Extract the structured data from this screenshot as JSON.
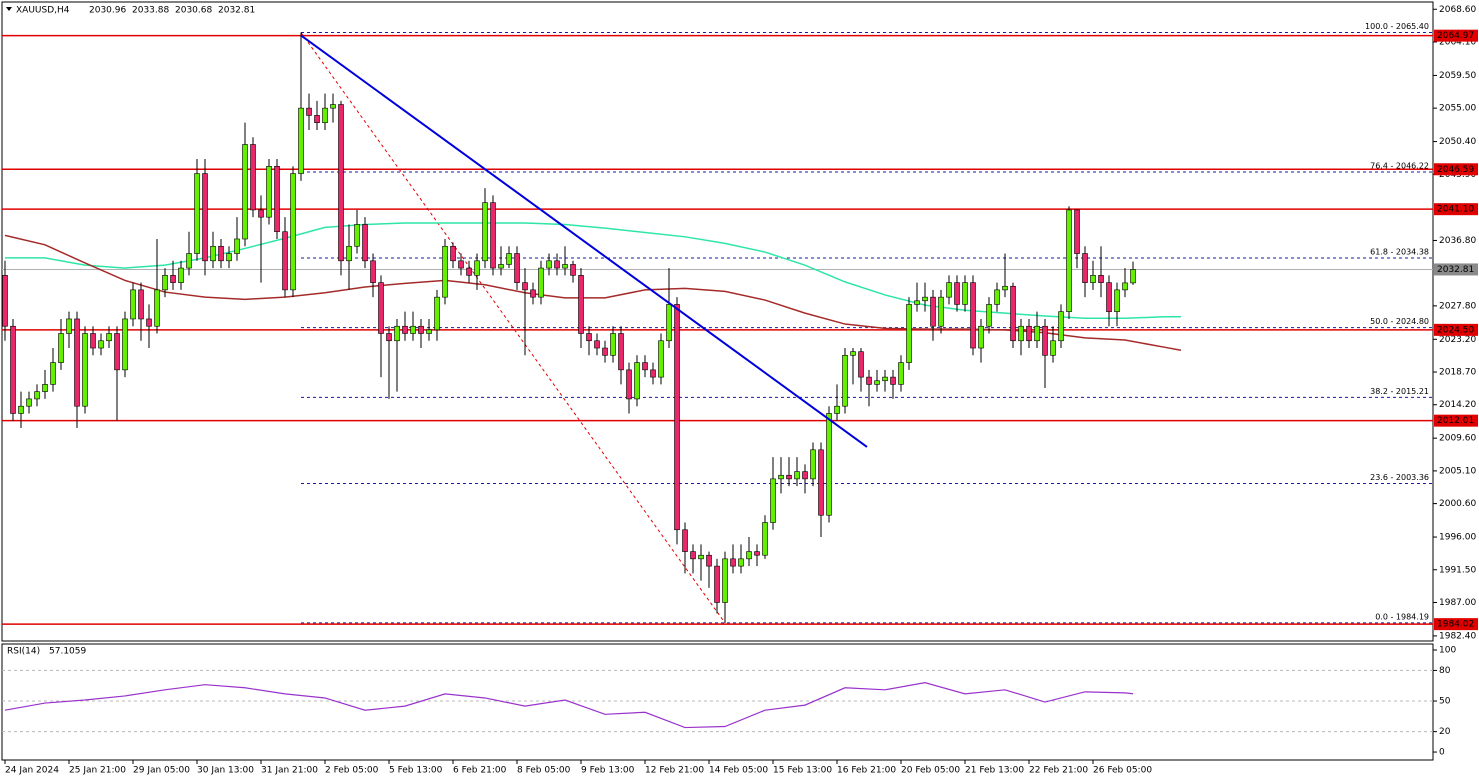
{
  "chart_data": {
    "type": "candlestick",
    "symbol": "XAUUSD,H4",
    "categories": [
      "24 Jan 2024",
      null,
      null,
      null,
      null,
      null,
      null,
      null,
      "25 Jan 21:00",
      null,
      null,
      null,
      null,
      null,
      null,
      null,
      "29 Jan 05:00",
      null,
      null,
      null,
      null,
      null,
      null,
      null,
      "30 Jan 13:00",
      null,
      null,
      null,
      null,
      null,
      null,
      null,
      "31 Jan 21:00",
      null,
      null,
      null,
      null,
      null,
      null,
      null,
      "2 Feb 05:00",
      null,
      null,
      null,
      null,
      null,
      null,
      null,
      "5 Feb 13:00",
      null,
      null,
      null,
      null,
      null,
      null,
      null,
      "6 Feb 21:00",
      null,
      null,
      null,
      null,
      null,
      null,
      null,
      "8 Feb 05:00",
      null,
      null,
      null,
      null,
      null,
      null,
      null,
      "9 Feb 13:00",
      null,
      null,
      null,
      null,
      null,
      null,
      null,
      "12 Feb 21:00",
      null,
      null,
      null,
      null,
      null,
      null,
      null,
      "14 Feb 05:00",
      null,
      null,
      null,
      null,
      null,
      null,
      null,
      "15 Feb 13:00",
      null,
      null,
      null,
      null,
      null,
      null,
      null,
      "16 Feb 21:00",
      null,
      null,
      null,
      null,
      null,
      null,
      null,
      "20 Feb 05:00",
      null,
      null,
      null,
      null,
      null,
      null,
      null,
      "21 Feb 13:00",
      null,
      null,
      null,
      null,
      null,
      null,
      null,
      "22 Feb 21:00",
      null,
      null,
      null,
      null,
      null,
      null,
      null,
      "26 Feb 05:00",
      null,
      null,
      null,
      null,
      null
    ],
    "open": [
      2032,
      2025,
      2013,
      2014,
      2015,
      2016,
      2017,
      2020,
      2024,
      2026,
      2014,
      2024,
      2022,
      2023,
      2024,
      2019,
      2026,
      2030,
      2026,
      2025,
      2030,
      2032,
      2031,
      2033,
      2035,
      2046,
      2034,
      2036,
      2034,
      2035,
      2037,
      2050,
      2041,
      2040,
      2047,
      2038,
      2030,
      2046,
      2055,
      2054,
      2053,
      2055,
      2055.5,
      2034,
      2036,
      2039,
      2034,
      2031,
      2024,
      2023,
      2025,
      2024,
      2025,
      2024,
      2024.5,
      2029,
      2036,
      2034,
      2033,
      2032,
      2034,
      2042,
      2033,
      2033.5,
      2035,
      2031,
      2030,
      2029,
      2033,
      2034,
      2033,
      2033.5,
      2032,
      2024,
      2023,
      2022,
      2021,
      2024,
      2019,
      2015,
      2020,
      2019,
      2018,
      2023,
      2028,
      1997,
      1994,
      1993,
      1993.5,
      1992,
      1987,
      1993,
      1992,
      1993,
      1994,
      1993.5,
      1998,
      2004,
      2004.5,
      2004,
      2005,
      2004,
      2008,
      1999,
      2013,
      2014,
      2021,
      2021.5,
      2018,
      2017,
      2017.5,
      2018,
      2017,
      2020,
      2028,
      2028.5,
      2029,
      2025,
      2029,
      2031,
      2028,
      2031,
      2022,
      2025,
      2028,
      2030,
      2030.5,
      2023,
      2025,
      2023,
      2025,
      2021,
      2023,
      2027,
      2041,
      2035,
      2031,
      2032,
      2031,
      2027,
      2030,
      2030.96
    ],
    "high": [
      2034,
      2026,
      2016,
      2016,
      2017,
      2019,
      2022,
      2026,
      2027,
      2027,
      2025,
      2025,
      2024,
      2025,
      2025,
      2027,
      2031,
      2031,
      2028,
      2037,
      2033,
      2034,
      2034,
      2038,
      2048,
      2048,
      2038,
      2037,
      2036,
      2040,
      2053,
      2051,
      2043,
      2048,
      2048,
      2040,
      2047,
      2065.4,
      2057,
      2056,
      2057,
      2057,
      2056,
      2039,
      2041,
      2040,
      2035,
      2032,
      2025,
      2026,
      2027,
      2027,
      2026,
      2026,
      2030,
      2037,
      2036.5,
      2035,
      2034,
      2035,
      2044,
      2043,
      2036,
      2036,
      2036,
      2033,
      2031,
      2034,
      2035,
      2035,
      2036,
      2034,
      2033,
      2025,
      2024,
      2023,
      2025,
      2025,
      2020,
      2021,
      2021,
      2020,
      2024,
      2033,
      2029,
      1998,
      1995,
      1995,
      1994,
      1993,
      1994,
      1995,
      1995,
      1996,
      1995,
      1999,
      2007,
      2007,
      2007,
      2007,
      2006,
      2009,
      2009,
      2014,
      2017,
      2022,
      2022,
      2022,
      2019,
      2019,
      2019,
      2019,
      2021,
      2029,
      2031,
      2031,
      2030,
      2030,
      2032,
      2032,
      2032,
      2032,
      2026,
      2029,
      2031,
      2035,
      2031,
      2026,
      2026,
      2027,
      2026,
      2025,
      2028,
      2041.5,
      2041,
      2036,
      2034,
      2036,
      2032,
      2031,
      2033,
      2033.88
    ],
    "low": [
      2023,
      2012,
      2011,
      2013,
      2014,
      2015,
      2016,
      2019,
      2022,
      2011,
      2013,
      2021,
      2021,
      2022,
      2012,
      2018,
      2025,
      2023,
      2022,
      2024,
      2029,
      2030,
      2030,
      2032,
      2034,
      2032,
      2033,
      2033,
      2033,
      2034,
      2036,
      2040,
      2031,
      2039,
      2037,
      2029,
      2029,
      2045,
      2052,
      2052,
      2052,
      2053,
      2032,
      2030,
      2035,
      2033,
      2029,
      2018,
      2015,
      2016,
      2023,
      2023,
      2022,
      2023,
      2023,
      2028,
      2033,
      2032,
      2031,
      2030,
      2033,
      2032,
      2032,
      2033,
      2030,
      2021,
      2028,
      2028,
      2032,
      2032,
      2032,
      2031,
      2022,
      2021,
      2021,
      2020,
      2020,
      2017,
      2013,
      2014,
      2018,
      2017,
      2017,
      2022,
      1995,
      1991,
      1991,
      1990,
      1989,
      1985.5,
      1984.2,
      1991,
      1991,
      1992,
      1992,
      1993,
      1997,
      2002,
      2003,
      2003,
      2002,
      2003,
      1996,
      1998,
      2012,
      2013,
      2017,
      2016,
      2014,
      2016,
      2016,
      2015,
      2016,
      2019,
      2027,
      2027,
      2023,
      2024,
      2028,
      2027,
      2027,
      2021,
      2020,
      2024,
      2027,
      2029,
      2022,
      2021,
      2022,
      2022,
      2016.5,
      2020,
      2022,
      2026,
      2033,
      2029,
      2030,
      2029,
      2025,
      2025,
      2029,
      2030.68
    ],
    "close": [
      2025,
      2013,
      2014,
      2015,
      2016,
      2017,
      2020,
      2024,
      2026,
      2014,
      2024,
      2022,
      2023,
      2024,
      2019,
      2026,
      2030,
      2026,
      2025,
      2030,
      2032,
      2031,
      2033,
      2035,
      2046,
      2034,
      2036,
      2034,
      2035,
      2037,
      2050,
      2041,
      2040,
      2047,
      2038,
      2030,
      2046,
      2055,
      2054,
      2053,
      2055,
      2055.5,
      2034,
      2036,
      2039,
      2034,
      2031,
      2024,
      2023,
      2025,
      2024,
      2025,
      2024,
      2024.5,
      2029,
      2036,
      2034,
      2033,
      2032,
      2034,
      2042,
      2033,
      2033.5,
      2035,
      2031,
      2030,
      2029,
      2033,
      2034,
      2033,
      2033.5,
      2032,
      2024,
      2023,
      2022,
      2021,
      2024,
      2019,
      2015,
      2020,
      2019,
      2018,
      2023,
      2028,
      1997,
      1994,
      1993,
      1993.5,
      1992,
      1987,
      1993,
      1992,
      1993,
      1994,
      1993.5,
      1998,
      2004,
      2004.5,
      2004,
      2005,
      2004,
      2008,
      1999,
      2013,
      2014,
      2021,
      2021.5,
      2018,
      2017,
      2017.5,
      2018,
      2017,
      2020,
      2028,
      2028.5,
      2029,
      2025,
      2029,
      2031,
      2028,
      2031,
      2022,
      2025,
      2028,
      2030,
      2030.5,
      2023,
      2025,
      2023,
      2025,
      2021,
      2023,
      2027,
      2041,
      2035,
      2031,
      2032,
      2031,
      2027,
      2030,
      2030.96,
      2032.81
    ],
    "up_color": "#66ee00",
    "down_color": "#e8286a",
    "ylim": [
      1981.7,
      2069.6
    ],
    "yticks": [
      {
        "value": 2068.6,
        "label": "2068.60"
      },
      {
        "value": 2064.1,
        "label": "2064.10"
      },
      {
        "value": 2059.5,
        "label": "2059.50"
      },
      {
        "value": 2055,
        "label": "2055.00"
      },
      {
        "value": 2050.4,
        "label": "2050.40"
      },
      {
        "value": 2045.9,
        "label": "2045.90"
      },
      {
        "value": 2036.8,
        "label": "2036.80"
      },
      {
        "value": 2027.8,
        "label": "2027.80"
      },
      {
        "value": 2023.2,
        "label": "2023.20"
      },
      {
        "value": 2018.7,
        "label": "2018.70"
      },
      {
        "value": 2014.2,
        "label": "2014.20"
      },
      {
        "value": 2009.6,
        "label": "2009.60"
      },
      {
        "value": 2005.1,
        "label": "2005.10"
      },
      {
        "value": 2000.6,
        "label": "2000.60"
      },
      {
        "value": 1996,
        "label": "1996.00"
      },
      {
        "value": 1991.5,
        "label": "1991.50"
      },
      {
        "value": 1987,
        "label": "1987.00"
      },
      {
        "value": 1982.4,
        "label": "1982.40"
      }
    ],
    "series": [
      {
        "color": "#2ee6a6",
        "x": [
          0,
          5,
          10,
          15,
          20,
          25,
          30,
          35,
          40,
          45,
          50,
          55,
          60,
          65,
          70,
          75,
          80,
          85,
          90,
          95,
          100,
          105,
          110,
          115,
          120,
          125,
          130,
          135,
          140,
          145,
          147
        ],
        "values": [
          2034.4,
          2034.4,
          2033.4,
          2033,
          2033.4,
          2034.4,
          2035.7,
          2037.1,
          2038.6,
          2039,
          2039.2,
          2039.2,
          2039.2,
          2039.2,
          2039,
          2038.5,
          2037.9,
          2037.3,
          2036.4,
          2035.2,
          2033.4,
          2031.1,
          2029.3,
          2027.9,
          2027.2,
          2026.8,
          2026.4,
          2026.1,
          2026.1,
          2026.3,
          2026.3
        ]
      },
      {
        "color": "#a52a2a",
        "x": [
          0,
          5,
          10,
          15,
          20,
          25,
          30,
          35,
          40,
          45,
          50,
          55,
          60,
          65,
          70,
          75,
          80,
          85,
          90,
          95,
          100,
          105,
          110,
          115,
          120,
          125,
          130,
          135,
          140,
          145,
          147
        ],
        "values": [
          2037.5,
          2036.2,
          2033.7,
          2031.3,
          2029.7,
          2029,
          2028.7,
          2029,
          2029.6,
          2030.4,
          2030.9,
          2031.3,
          2030.7,
          2029.6,
          2028.9,
          2028.9,
          2030,
          2030.2,
          2029.8,
          2028.6,
          2026.8,
          2025.3,
          2024.7,
          2024.6,
          2024.6,
          2024.5,
          2024.1,
          2023.4,
          2023.1,
          2022.1,
          2021.7
        ]
      }
    ],
    "levels": {
      "color": "#e00000",
      "values": [
        2064.97,
        2046.59,
        {
          "value": 2041.1,
          "label": "2041.10"
        },
        {
          "value": 2024.5,
          "label": "2024.50"
        },
        2012.01,
        1984.02
      ]
    },
    "fib": {
      "color": "#1a1aa0",
      "label_color": "#0000ee",
      "line_color": "#e00000",
      "x": [
        37,
        90
      ],
      "levels": [
        {
          "value": 2065.4,
          "label": "100.0 - 2065.40"
        },
        {
          "value": 2046.22,
          "label": "76.4 - 2046.22"
        },
        {
          "value": 2034.38,
          "label": "61.8 - 2034.38"
        },
        {
          "value": 2024.8,
          "label": "50.0 - 2024.80"
        },
        {
          "value": 2015.21,
          "label": "38.2 - 2015.21"
        },
        {
          "value": 2003.36,
          "label": "23.6 - 2003.36"
        },
        {
          "value": 1984.19,
          "label": "0.0 - 1984.19"
        }
      ]
    },
    "trendline": {
      "color": "#0000dd",
      "x": [
        37,
        107.75
      ],
      "values": [
        2065,
        2008.4
      ]
    },
    "price_line_color": "#b0b0b0",
    "rsi": {
      "type": "line",
      "title": "RSI(14)",
      "color": "#9932cc",
      "x": [
        0,
        5,
        10,
        15,
        20,
        25,
        30,
        35,
        40,
        45,
        50,
        55,
        60,
        65,
        70,
        75,
        80,
        85,
        90,
        95,
        100,
        105,
        110,
        115,
        120,
        125,
        130,
        135,
        140,
        141
      ],
      "values": [
        41,
        48,
        51,
        55,
        61,
        66,
        63,
        57,
        53,
        41,
        45,
        57,
        53,
        45,
        51,
        37,
        39,
        24,
        25,
        41,
        46,
        63,
        61,
        68,
        57,
        61,
        49,
        59,
        58,
        57.1059
      ],
      "ylim": [
        -7.8,
        105.9
      ],
      "yticks": [
        100,
        80,
        50,
        20,
        0
      ],
      "levels": [
        80,
        50,
        20
      ]
    }
  }
}
